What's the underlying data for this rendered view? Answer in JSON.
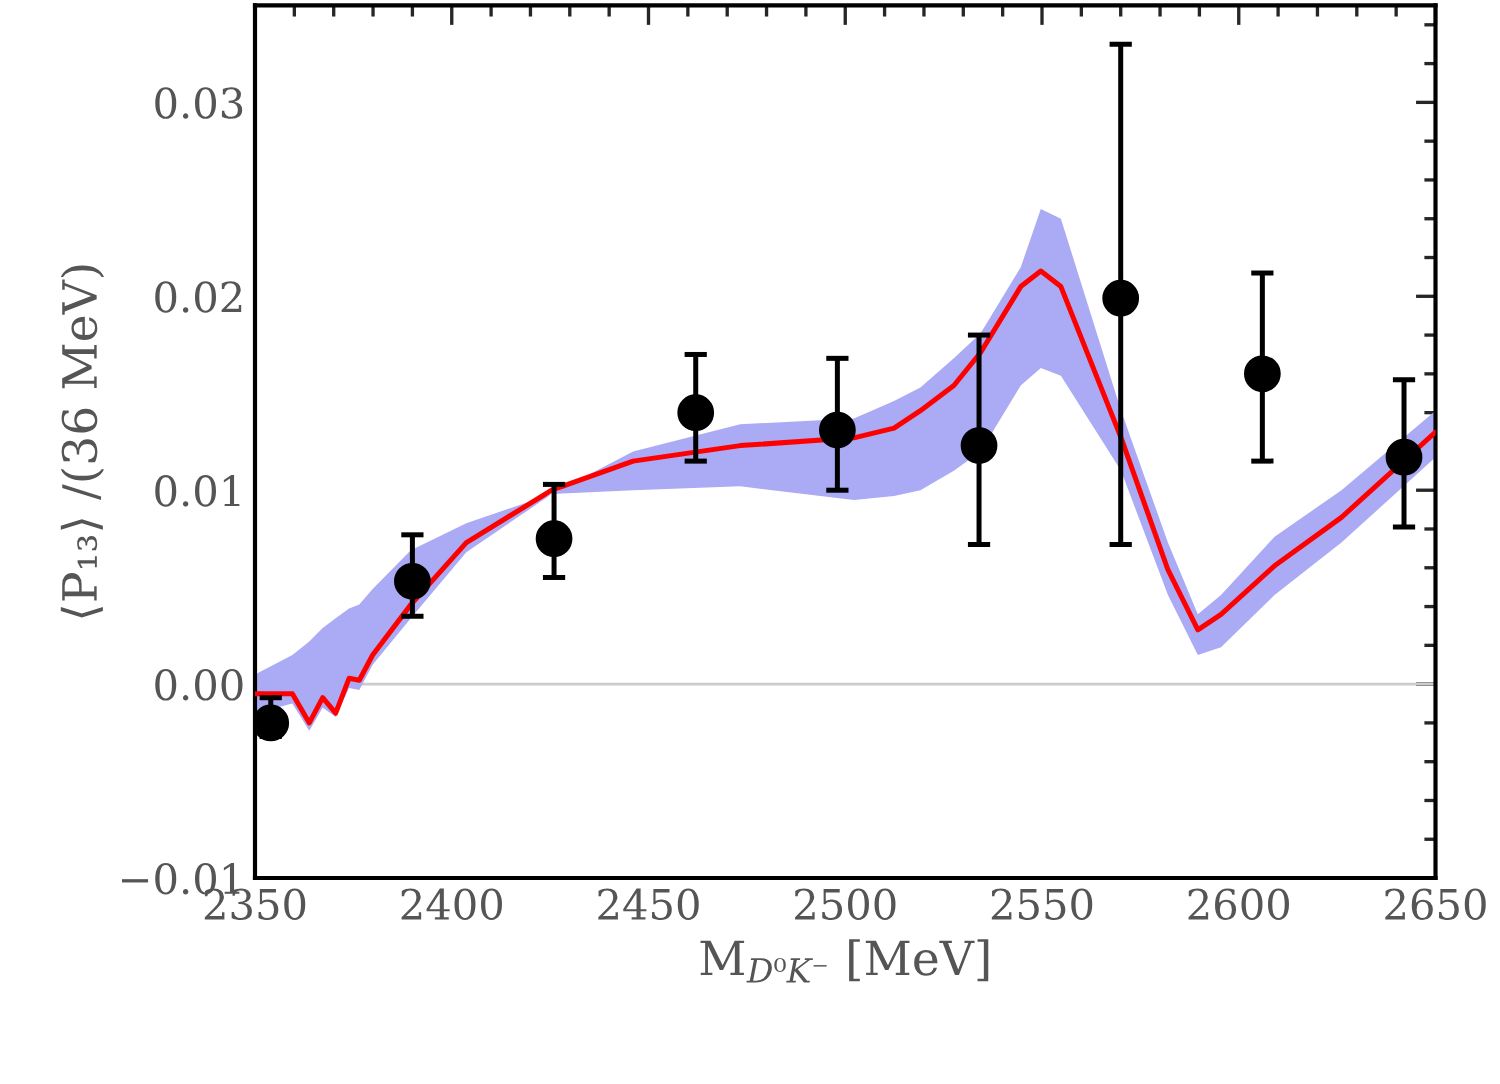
{
  "chart_data": {
    "type": "scatter",
    "xlabel": "M$_{D⁰K⁻}$ [MeV]",
    "ylabel": "⟨P₁₃⟩ /(36 MeV)",
    "xlim": [
      2350,
      2650
    ],
    "xticks": [
      2350,
      2400,
      2450,
      2500,
      2550,
      2600,
      2650
    ],
    "ylim": [
      -0.01,
      0.035
    ],
    "yticks": [
      {
        "value": -0.01,
        "label": "−0.01"
      },
      {
        "value": 0,
        "label": "0.00"
      },
      {
        "value": 0.01,
        "label": "0.01"
      },
      {
        "value": 0.02,
        "label": "0.02"
      },
      {
        "value": 0.03,
        "label": "0.03"
      }
    ],
    "grid": false,
    "legend": false,
    "ref_lines": [
      {
        "axis": "y",
        "value": 0,
        "color": "#cccccc"
      }
    ],
    "series": [
      {
        "type": "line",
        "color": "#ff0000",
        "x": [
          2350,
          2359.5,
          2363.8,
          2367.2,
          2370.5,
          2373.9,
          2376.5,
          2379.9,
          2389.6,
          2403.7,
          2425.4,
          2446.1,
          2473.3,
          2502.2,
          2512.4,
          2519.1,
          2527.6,
          2534.4,
          2544.6,
          2549.7,
          2554.8,
          2570.1,
          2582,
          2589.6,
          2595.5,
          2609.1,
          2626.1,
          2650
        ],
        "values": [
          -0.0005,
          -0.0005,
          -0.002,
          -0.0007,
          -0.0015,
          0.0003,
          0.0002,
          0.0015,
          0.0041,
          0.0073,
          0.01,
          0.0115,
          0.0123,
          0.0127,
          0.0132,
          0.0141,
          0.0154,
          0.0171,
          0.0205,
          0.0213,
          0.0205,
          0.0127,
          0.0059,
          0.0028,
          0.0036,
          0.0061,
          0.0086,
          0.013
        ],
        "upper": [
          0.0005,
          0.0015,
          0.0022,
          0.0029,
          0.0034,
          0.0039,
          0.0041,
          0.0049,
          0.0069,
          0.0083,
          0.0098,
          0.012,
          0.0134,
          0.0137,
          0.0146,
          0.0153,
          0.0168,
          0.0181,
          0.0215,
          0.0245,
          0.024,
          0.0141,
          0.0073,
          0.0036,
          0.0046,
          0.0076,
          0.01,
          0.0141
        ],
        "lower": [
          -0.0015,
          -0.001,
          -0.0024,
          -0.0012,
          -0.0017,
          -0.0002,
          -0.0003,
          0.001,
          0.0034,
          0.0068,
          0.0098,
          0.01,
          0.0102,
          0.0095,
          0.0097,
          0.01,
          0.011,
          0.012,
          0.0154,
          0.0163,
          0.0159,
          0.011,
          0.0046,
          0.0015,
          0.0019,
          0.0046,
          0.0073,
          0.0117
        ]
      },
      {
        "color": "#000000",
        "marker": "circle",
        "x": [
          2354,
          2390,
          2426,
          2462,
          2498,
          2534,
          2570,
          2606,
          2642
        ],
        "values": [
          -0.002,
          0.0053,
          0.0075,
          0.014,
          0.0131,
          0.0123,
          0.0199,
          0.016,
          0.0117
        ],
        "errors": [
          [
            -0.0027,
            -0.0007
          ],
          [
            0.0035,
            0.0077
          ],
          [
            0.0055,
            0.0103
          ],
          [
            0.0115,
            0.017
          ],
          [
            0.01,
            0.0168
          ],
          [
            0.0072,
            0.018
          ],
          [
            0.0072,
            0.033
          ],
          [
            0.0115,
            0.0212
          ],
          [
            0.0081,
            0.0157
          ]
        ]
      }
    ]
  }
}
